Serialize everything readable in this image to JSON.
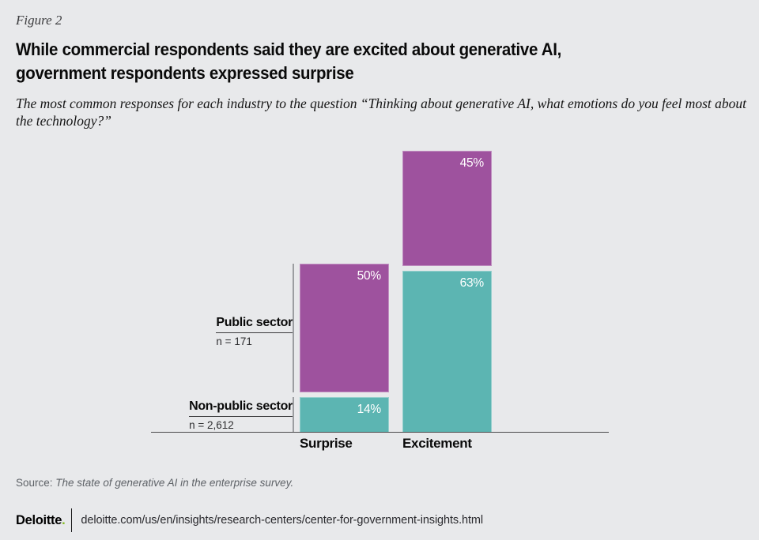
{
  "figure_label": "Figure 2",
  "title_lines": [
    "While commercial respondents said they are excited about generative AI,",
    "government respondents expressed surprise"
  ],
  "subtitle_lines": [
    "The most common responses for each industry to the question “Thinking about generative AI, what emotions do you feel most",
    "about the technology?”"
  ],
  "chart_data": {
    "type": "bar",
    "stacked": true,
    "grid": false,
    "axis_line": true,
    "unit": "percent",
    "ylim": [
      0,
      100
    ],
    "value_label_position": "inside-top-right",
    "categories": [
      "Surprise",
      "Excitement"
    ],
    "series": [
      {
        "name": "Public sector",
        "sample_label": "n = 171",
        "color": "#9e529e",
        "values": [
          50,
          45
        ],
        "display_values": [
          "50%",
          "45%"
        ]
      },
      {
        "name": "Non-public sector",
        "sample_label": "n = 2,612",
        "color": "#5cb5b2",
        "values": [
          14,
          63
        ],
        "display_values": [
          "14%",
          "63%"
        ]
      }
    ]
  },
  "source": {
    "prefix": "Source: ",
    "text": "The state of generative AI in the enterprise survey."
  },
  "footer": {
    "logo_text": "Deloitte",
    "logo_dot": ".",
    "logo_dot_color": "#86bc25",
    "url": "deloitte.com/us/en/insights/research-centers/center-for-government-insights.html"
  }
}
